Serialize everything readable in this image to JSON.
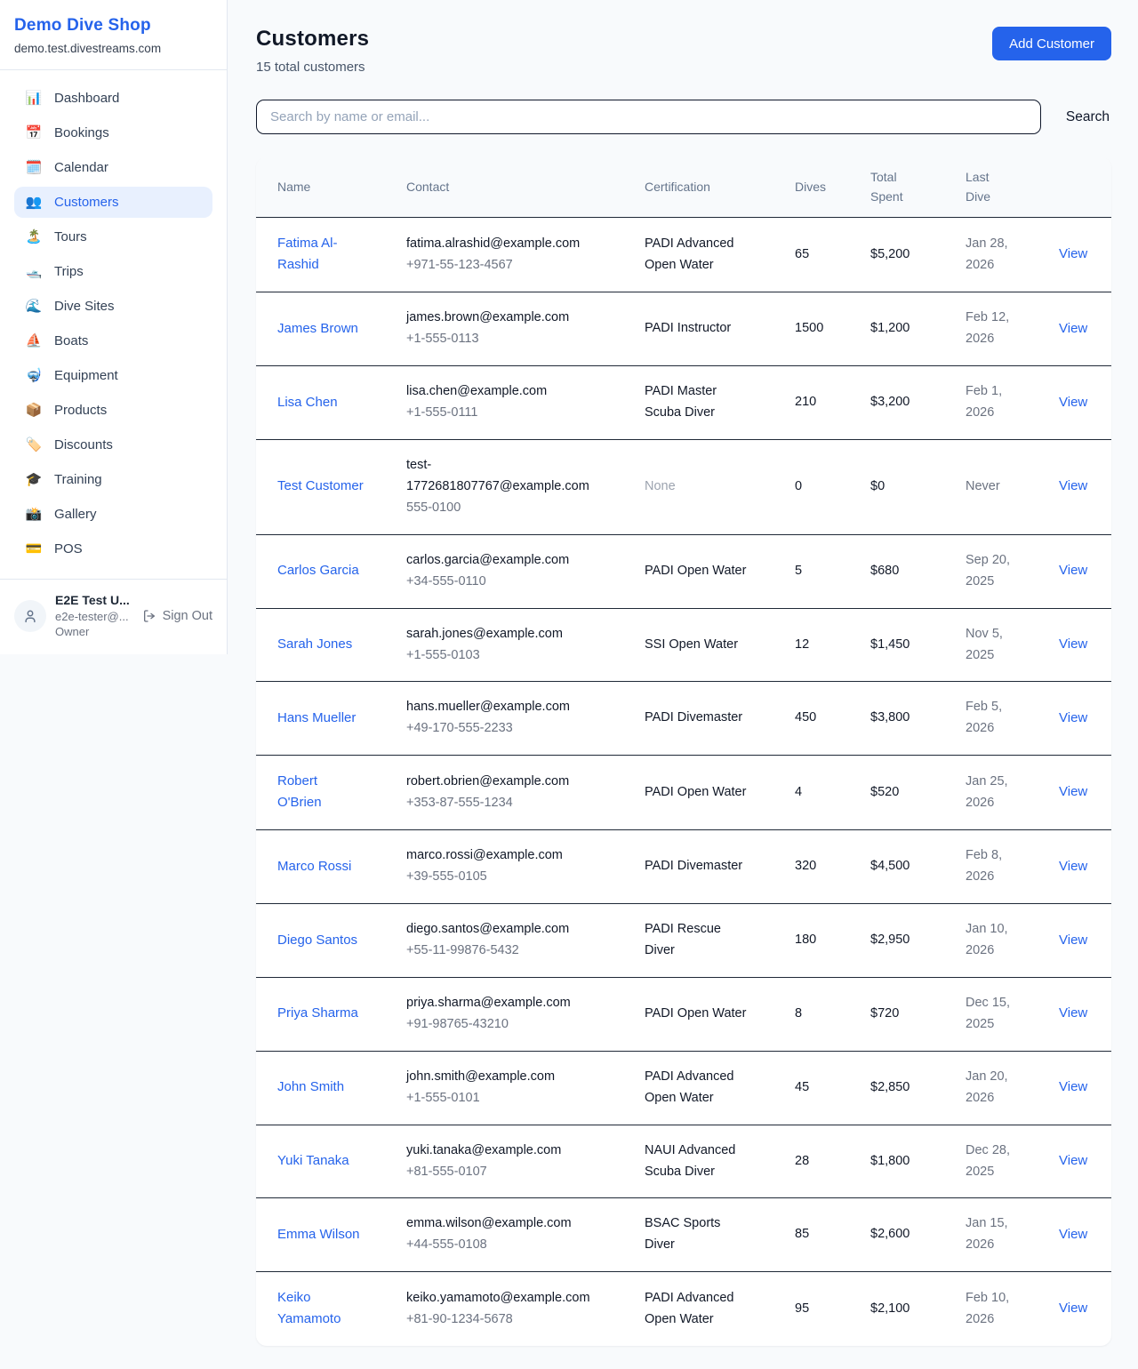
{
  "colors": {
    "accent": "#2563eb",
    "accent_button_text": "#ffffff",
    "active_nav_bg": "#e8f0fe",
    "page_bg": "#f8fafc",
    "row_divider": "#1f2937",
    "muted_text": "#9ca3af"
  },
  "sidebar": {
    "title": "Demo Dive Shop",
    "subtitle": "demo.test.divestreams.com",
    "nav": [
      {
        "id": "dashboard",
        "icon_name": "bar-chart-icon",
        "glyph": "📊",
        "label": "Dashboard",
        "active": false
      },
      {
        "id": "bookings",
        "icon_name": "calendar-date-icon",
        "glyph": "📅",
        "label": "Bookings",
        "active": false
      },
      {
        "id": "calendar",
        "icon_name": "calendar-pad-icon",
        "glyph": "🗓️",
        "label": "Calendar",
        "active": false
      },
      {
        "id": "customers",
        "icon_name": "people-icon",
        "glyph": "👥",
        "label": "Customers",
        "active": true
      },
      {
        "id": "tours",
        "icon_name": "island-icon",
        "glyph": "🏝️",
        "label": "Tours",
        "active": false
      },
      {
        "id": "trips",
        "icon_name": "motorboat-icon",
        "glyph": "🛥️",
        "label": "Trips",
        "active": false
      },
      {
        "id": "dive-sites",
        "icon_name": "wave-icon",
        "glyph": "🌊",
        "label": "Dive Sites",
        "active": false
      },
      {
        "id": "boats",
        "icon_name": "sailboat-icon",
        "glyph": "⛵",
        "label": "Boats",
        "active": false
      },
      {
        "id": "equipment",
        "icon_name": "diving-mask-icon",
        "glyph": "🤿",
        "label": "Equipment",
        "active": false
      },
      {
        "id": "products",
        "icon_name": "package-icon",
        "glyph": "📦",
        "label": "Products",
        "active": false
      },
      {
        "id": "discounts",
        "icon_name": "tag-icon",
        "glyph": "🏷️",
        "label": "Discounts",
        "active": false
      },
      {
        "id": "training",
        "icon_name": "graduation-cap-icon",
        "glyph": "🎓",
        "label": "Training",
        "active": false
      },
      {
        "id": "gallery",
        "icon_name": "camera-icon",
        "glyph": "📸",
        "label": "Gallery",
        "active": false
      },
      {
        "id": "pos",
        "icon_name": "credit-card-icon",
        "glyph": "💳",
        "label": "POS",
        "active": false
      }
    ],
    "user": {
      "name": "E2E Test U...",
      "email": "e2e-tester@...",
      "role": "Owner",
      "sign_out_label": "Sign Out"
    }
  },
  "header": {
    "title": "Customers",
    "subtitle": "15 total customers",
    "add_button_label": "Add Customer"
  },
  "search": {
    "placeholder": "Search by name or email...",
    "button_label": "Search"
  },
  "table": {
    "columns": [
      "Name",
      "Contact",
      "Certification",
      "Dives",
      "Total Spent",
      "Last Dive",
      ""
    ],
    "action_label": "View",
    "rows": [
      {
        "name": "Fatima Al-Rashid",
        "email": "fatima.alrashid@example.com",
        "phone": "+971-55-123-4567",
        "certification": "PADI Advanced Open Water",
        "dives": "65",
        "total_spent": "$5,200",
        "last_dive": "Jan 28, 2026"
      },
      {
        "name": "James Brown",
        "email": "james.brown@example.com",
        "phone": "+1-555-0113",
        "certification": "PADI Instructor",
        "dives": "1500",
        "total_spent": "$1,200",
        "last_dive": "Feb 12, 2026"
      },
      {
        "name": "Lisa Chen",
        "email": "lisa.chen@example.com",
        "phone": "+1-555-0111",
        "certification": "PADI Master Scuba Diver",
        "dives": "210",
        "total_spent": "$3,200",
        "last_dive": "Feb 1, 2026"
      },
      {
        "name": "Test Customer",
        "email": "test-1772681807767@example.com",
        "phone": "555-0100",
        "certification": "None",
        "dives": "0",
        "total_spent": "$0",
        "last_dive": "Never"
      },
      {
        "name": "Carlos Garcia",
        "email": "carlos.garcia@example.com",
        "phone": "+34-555-0110",
        "certification": "PADI Open Water",
        "dives": "5",
        "total_spent": "$680",
        "last_dive": "Sep 20, 2025"
      },
      {
        "name": "Sarah Jones",
        "email": "sarah.jones@example.com",
        "phone": "+1-555-0103",
        "certification": "SSI Open Water",
        "dives": "12",
        "total_spent": "$1,450",
        "last_dive": "Nov 5, 2025"
      },
      {
        "name": "Hans Mueller",
        "email": "hans.mueller@example.com",
        "phone": "+49-170-555-2233",
        "certification": "PADI Divemaster",
        "dives": "450",
        "total_spent": "$3,800",
        "last_dive": "Feb 5, 2026"
      },
      {
        "name": "Robert O'Brien",
        "email": "robert.obrien@example.com",
        "phone": "+353-87-555-1234",
        "certification": "PADI Open Water",
        "dives": "4",
        "total_spent": "$520",
        "last_dive": "Jan 25, 2026"
      },
      {
        "name": "Marco Rossi",
        "email": "marco.rossi@example.com",
        "phone": "+39-555-0105",
        "certification": "PADI Divemaster",
        "dives": "320",
        "total_spent": "$4,500",
        "last_dive": "Feb 8, 2026"
      },
      {
        "name": "Diego Santos",
        "email": "diego.santos@example.com",
        "phone": "+55-11-99876-5432",
        "certification": "PADI Rescue Diver",
        "dives": "180",
        "total_spent": "$2,950",
        "last_dive": "Jan 10, 2026"
      },
      {
        "name": "Priya Sharma",
        "email": "priya.sharma@example.com",
        "phone": "+91-98765-43210",
        "certification": "PADI Open Water",
        "dives": "8",
        "total_spent": "$720",
        "last_dive": "Dec 15, 2025"
      },
      {
        "name": "John Smith",
        "email": "john.smith@example.com",
        "phone": "+1-555-0101",
        "certification": "PADI Advanced Open Water",
        "dives": "45",
        "total_spent": "$2,850",
        "last_dive": "Jan 20, 2026"
      },
      {
        "name": "Yuki Tanaka",
        "email": "yuki.tanaka@example.com",
        "phone": "+81-555-0107",
        "certification": "NAUI Advanced Scuba Diver",
        "dives": "28",
        "total_spent": "$1,800",
        "last_dive": "Dec 28, 2025"
      },
      {
        "name": "Emma Wilson",
        "email": "emma.wilson@example.com",
        "phone": "+44-555-0108",
        "certification": "BSAC Sports Diver",
        "dives": "85",
        "total_spent": "$2,600",
        "last_dive": "Jan 15, 2026"
      },
      {
        "name": "Keiko Yamamoto",
        "email": "keiko.yamamoto@example.com",
        "phone": "+81-90-1234-5678",
        "certification": "PADI Advanced Open Water",
        "dives": "95",
        "total_spent": "$2,100",
        "last_dive": "Feb 10, 2026"
      }
    ]
  }
}
